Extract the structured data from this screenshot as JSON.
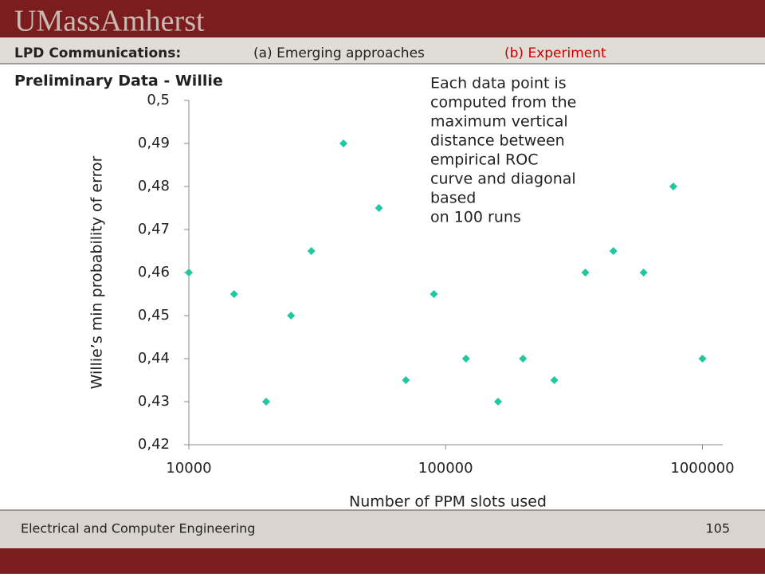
{
  "header": {
    "logo": "UMassAmherst",
    "course": "LPD Communications:",
    "tabs": [
      "(a)  Emerging approaches",
      "(b)  Experiment"
    ]
  },
  "footer": {
    "department": "Electrical and Computer Engineering",
    "page": "105"
  },
  "chart_data": {
    "type": "scatter",
    "title": "Preliminary Data - Willie",
    "x_label": "Number of PPM slots used",
    "y_label": "Willie’s min probability of error",
    "annotation": [
      "Each data point is",
      "computed from the",
      "maximum vertical",
      "distance between",
      "empirical ROC",
      "curve and diagonal",
      "based",
      "on 100 runs"
    ],
    "x": [
      10000,
      15000,
      20000,
      25000,
      30000,
      40000,
      55000,
      70000,
      90000,
      120000,
      160000,
      200000,
      265000,
      350000,
      450000,
      590000,
      770000,
      1000000
    ],
    "values": [
      0.46,
      0.455,
      0.43,
      0.45,
      0.465,
      0.49,
      0.475,
      0.435,
      0.455,
      0.44,
      0.43,
      0.44,
      0.435,
      0.46,
      0.465,
      0.46,
      0.48,
      0.44
    ],
    "color": "#1fc8a0",
    "xscale": "log",
    "xlim": [
      10000,
      1200000
    ],
    "xticks": [
      10000,
      100000,
      1000000
    ],
    "ylim": [
      0.42,
      0.5
    ],
    "yticks": [
      {
        "value": 0.42,
        "label": "0,42"
      },
      {
        "value": 0.43,
        "label": "0,43"
      },
      {
        "value": 0.44,
        "label": "0,44"
      },
      {
        "value": 0.45,
        "label": "0,45"
      },
      {
        "value": 0.46,
        "label": "0,46"
      },
      {
        "value": 0.47,
        "label": "0,47"
      },
      {
        "value": 0.48,
        "label": "0,48"
      },
      {
        "value": 0.49,
        "label": "0,49"
      },
      {
        "value": 0.5,
        "label": "0,5"
      }
    ],
    "grid": false
  }
}
